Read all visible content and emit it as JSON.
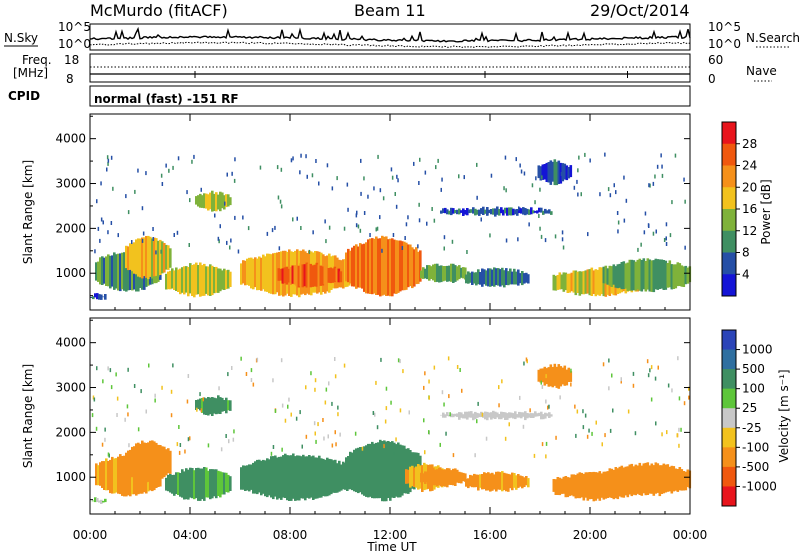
{
  "header": {
    "station": "McMurdo (fitACF)",
    "beam": "Beam 11",
    "date": "29/Oct/2014"
  },
  "noise_panel": {
    "left_label": "N.Sky",
    "left_ticks": [
      "10^5",
      "10^0"
    ],
    "right_ticks": [
      "10^5",
      "10^0"
    ],
    "right_label": "N.Search"
  },
  "freq_panel": {
    "label_line1": "Freq.",
    "label_line2": "[MHz]",
    "left_ticks": [
      "18",
      "8"
    ],
    "right_ticks": [
      "60",
      "0"
    ],
    "right_label": "Nave"
  },
  "cpid_panel": {
    "label": "CPID",
    "text": "normal (fast) -151 RF"
  },
  "power_panel": {
    "ylabel": "Slant Range [km]",
    "cbar_label": "Power [dB]",
    "cbar_ticks": [
      "28",
      "24",
      "20",
      "16",
      "12",
      "8",
      "4"
    ],
    "cbar_colors": [
      "#e8141c",
      "#f0580e",
      "#f5901a",
      "#f2c21e",
      "#7fb23a",
      "#3f8f62",
      "#254fa6",
      "#1414d6"
    ]
  },
  "velocity_panel": {
    "ylabel": "Slant Range [km]",
    "cbar_label": "Velocity [m s⁻¹]",
    "cbar_ticks": [
      "1000",
      "500",
      "100",
      "25",
      "-25",
      "-100",
      "-500",
      "-1000"
    ],
    "cbar_colors": [
      "#2b44b8",
      "#2f6fa0",
      "#3f8f62",
      "#5ec63a",
      "#c8c8c8",
      "#f2c21e",
      "#f5901a",
      "#f0580e",
      "#e8141c"
    ]
  },
  "xaxis": {
    "label": "Time UT",
    "ticks": [
      "00:00",
      "04:00",
      "08:00",
      "12:00",
      "16:00",
      "20:00",
      "00:00"
    ]
  },
  "chart_data": {
    "type": "heatmap",
    "title": "McMurdo (fitACF)",
    "subtitle": "Beam 11",
    "date": "29/Oct/2014",
    "xlabel": "Time UT",
    "xlim_hours": [
      0,
      24
    ],
    "panels": [
      {
        "name": "Power",
        "ylabel": "Slant Range [km]",
        "ylim_km": [
          180,
          4550
        ],
        "yticks": [
          1000,
          2000,
          3000,
          4000
        ],
        "cbar": {
          "label": "Power [dB]",
          "ticks": [
            4,
            8,
            12,
            16,
            20,
            24,
            28
          ]
        },
        "patches": [
          {
            "t0": 0.0,
            "t1": 0.6,
            "r0": 420,
            "r1": 520,
            "value": 6
          },
          {
            "t0": 0.2,
            "t1": 2.8,
            "r0": 600,
            "r1": 1500,
            "value": 10
          },
          {
            "t0": 1.4,
            "t1": 3.2,
            "r0": 900,
            "r1": 1800,
            "value": 18
          },
          {
            "t0": 3.0,
            "t1": 5.6,
            "r0": 500,
            "r1": 1200,
            "value": 16
          },
          {
            "t0": 4.2,
            "t1": 5.6,
            "r0": 2400,
            "r1": 2800,
            "value": 16
          },
          {
            "t0": 6.0,
            "t1": 10.4,
            "r0": 500,
            "r1": 1500,
            "value": 20
          },
          {
            "t0": 7.5,
            "t1": 10.0,
            "r0": 700,
            "r1": 1200,
            "value": 26
          },
          {
            "t0": 10.2,
            "t1": 13.2,
            "r0": 500,
            "r1": 1800,
            "value": 24
          },
          {
            "t0": 13.2,
            "t1": 15.0,
            "r0": 800,
            "r1": 1200,
            "value": 12
          },
          {
            "t0": 15.0,
            "t1": 17.5,
            "r0": 700,
            "r1": 1100,
            "value": 8
          },
          {
            "t0": 14.0,
            "t1": 18.4,
            "r0": 2300,
            "r1": 2450,
            "value": 6
          },
          {
            "t0": 17.9,
            "t1": 19.2,
            "r0": 3000,
            "r1": 3500,
            "value": 6
          },
          {
            "t0": 18.5,
            "t1": 22.0,
            "r0": 500,
            "r1": 1100,
            "value": 18
          },
          {
            "t0": 20.5,
            "t1": 24.0,
            "r0": 600,
            "r1": 1300,
            "value": 12
          }
        ]
      },
      {
        "name": "Velocity",
        "ylabel": "Slant Range [km]",
        "ylim_km": [
          180,
          4550
        ],
        "yticks": [
          1000,
          2000,
          3000,
          4000
        ],
        "cbar": {
          "label": "Velocity [m s-1]",
          "ticks": [
            -1000,
            -500,
            -100,
            -25,
            25,
            100,
            500,
            1000
          ]
        },
        "patches": [
          {
            "t0": 0.0,
            "t1": 0.6,
            "r0": 420,
            "r1": 520,
            "value": 50
          },
          {
            "t0": 0.2,
            "t1": 2.8,
            "r0": 600,
            "r1": 1500,
            "value": -150
          },
          {
            "t0": 1.4,
            "t1": 3.2,
            "r0": 900,
            "r1": 1800,
            "value": -300
          },
          {
            "t0": 3.0,
            "t1": 5.6,
            "r0": 500,
            "r1": 1200,
            "value": 150
          },
          {
            "t0": 4.2,
            "t1": 5.6,
            "r0": 2400,
            "r1": 2800,
            "value": 150
          },
          {
            "t0": 6.0,
            "t1": 10.4,
            "r0": 500,
            "r1": 1500,
            "value": 250
          },
          {
            "t0": 10.2,
            "t1": 13.2,
            "r0": 500,
            "r1": 1800,
            "value": 250
          },
          {
            "t0": 12.6,
            "t1": 14.2,
            "r0": 700,
            "r1": 1300,
            "value": -80
          },
          {
            "t0": 13.2,
            "t1": 15.0,
            "r0": 800,
            "r1": 1200,
            "value": -200
          },
          {
            "t0": 15.0,
            "t1": 17.5,
            "r0": 700,
            "r1": 1100,
            "value": -150
          },
          {
            "t0": 14.0,
            "t1": 18.4,
            "r0": 2300,
            "r1": 2450,
            "value": 0
          },
          {
            "t0": 17.9,
            "t1": 19.2,
            "r0": 3000,
            "r1": 3500,
            "value": -300
          },
          {
            "t0": 18.5,
            "t1": 22.0,
            "r0": 500,
            "r1": 1100,
            "value": -250
          },
          {
            "t0": 20.5,
            "t1": 24.0,
            "r0": 600,
            "r1": 1300,
            "value": -300
          }
        ]
      }
    ]
  }
}
